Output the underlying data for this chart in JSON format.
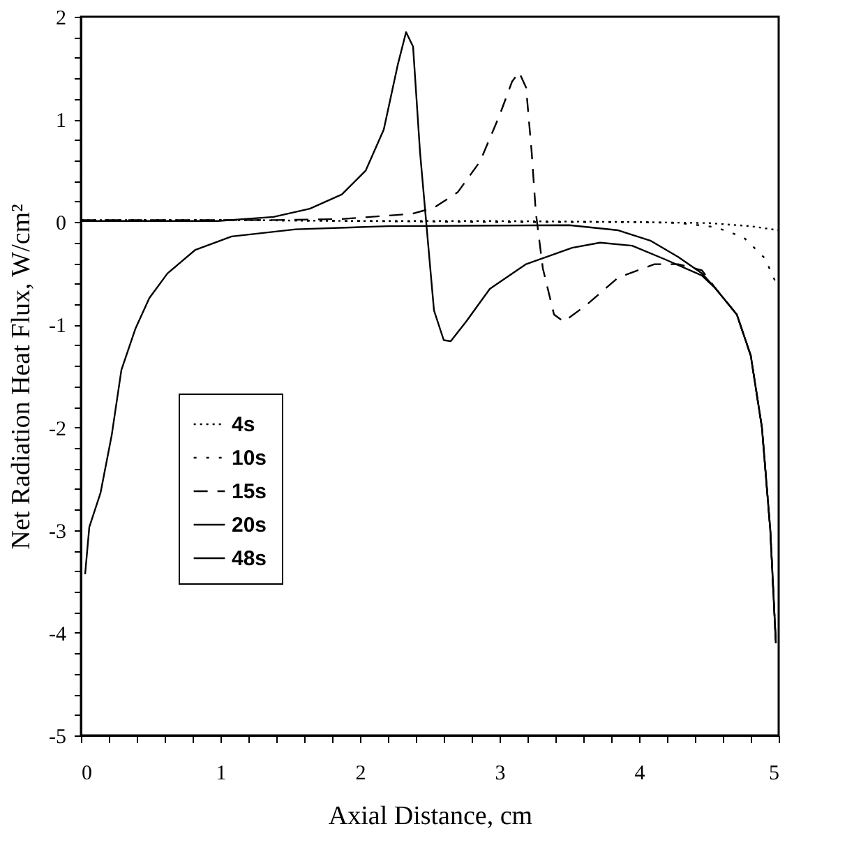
{
  "chart_data": {
    "type": "line",
    "xlabel": "Axial Distance, cm",
    "ylabel": "Net Radiation Heat Flux, W/cm²",
    "xlim": [
      0,
      5
    ],
    "ylim": [
      -5,
      2
    ],
    "xticks": [
      0,
      {
        "value": 0.2,
        "label": null
      },
      {
        "value": 0.4,
        "label": null
      },
      {
        "value": 0.6,
        "label": null
      },
      {
        "value": 0.8,
        "label": null
      },
      1,
      {
        "value": 1.2,
        "label": null
      },
      {
        "value": 1.4,
        "label": null
      },
      {
        "value": 1.6,
        "label": null
      },
      {
        "value": 1.8,
        "label": null
      },
      2,
      {
        "value": 2.2,
        "label": null
      },
      {
        "value": 2.4,
        "label": null
      },
      {
        "value": 2.6,
        "label": null
      },
      {
        "value": 2.8,
        "label": null
      },
      3,
      {
        "value": 3.2,
        "label": null
      },
      {
        "value": 3.4,
        "label": null
      },
      {
        "value": 3.6,
        "label": null
      },
      {
        "value": 3.8,
        "label": null
      },
      4,
      {
        "value": 4.2,
        "label": null
      },
      {
        "value": 4.4,
        "label": null
      },
      {
        "value": 4.6,
        "label": null
      },
      {
        "value": 4.8,
        "label": null
      },
      5
    ],
    "yticks": [
      -5,
      {
        "value": -4.8,
        "label": null
      },
      {
        "value": -4.6,
        "label": null
      },
      {
        "value": -4.4,
        "label": null
      },
      {
        "value": -4.2,
        "label": null
      },
      -4,
      {
        "value": -3.8,
        "label": null
      },
      {
        "value": -3.6,
        "label": null
      },
      {
        "value": -3.4,
        "label": null
      },
      {
        "value": -3.2,
        "label": null
      },
      -3,
      {
        "value": -2.8,
        "label": null
      },
      {
        "value": -2.6,
        "label": null
      },
      {
        "value": -2.4,
        "label": null
      },
      {
        "value": -2.2,
        "label": null
      },
      -2,
      {
        "value": -1.8,
        "label": null
      },
      {
        "value": -1.6,
        "label": null
      },
      {
        "value": -1.4,
        "label": null
      },
      {
        "value": -1.2,
        "label": null
      },
      -1,
      {
        "value": -0.8,
        "label": null
      },
      {
        "value": -0.6,
        "label": null
      },
      {
        "value": -0.4,
        "label": null
      },
      {
        "value": -0.2,
        "label": null
      },
      0,
      {
        "value": 0.2,
        "label": null
      },
      {
        "value": 0.4,
        "label": null
      },
      {
        "value": 0.6,
        "label": null
      },
      {
        "value": 0.8,
        "label": null
      },
      1,
      {
        "value": 1.2,
        "label": null
      },
      {
        "value": 1.4,
        "label": null
      },
      {
        "value": 1.6,
        "label": null
      },
      {
        "value": 1.8,
        "label": null
      },
      2
    ],
    "grid": false,
    "legend": "left",
    "marker": "none",
    "series": [
      {
        "name": "4s",
        "color": "#000000",
        "line_style": "dotted",
        "x": [
          0,
          1,
          2,
          3,
          4,
          4.5,
          4.8,
          5
        ],
        "values": [
          0.02,
          0.02,
          0.01,
          0.01,
          0.0,
          -0.01,
          -0.04,
          -0.08
        ]
      },
      {
        "name": "10s",
        "color": "#000000",
        "line_style": "dotted",
        "x": [
          0,
          1,
          2,
          3,
          4,
          4.3,
          4.55,
          4.75,
          4.9,
          5
        ],
        "values": [
          0.02,
          0.02,
          0.01,
          0.0,
          0.0,
          -0.01,
          -0.05,
          -0.15,
          -0.35,
          -0.65
        ]
      },
      {
        "name": "15s",
        "color": "#000000",
        "line_style": "dashed",
        "x": [
          0,
          1,
          1.4,
          1.87,
          2.37,
          2.53,
          2.7,
          2.86,
          3.0,
          3.09,
          3.14,
          3.19,
          3.23,
          3.26,
          3.31,
          3.39,
          3.46,
          3.62,
          3.85,
          4.11,
          4.28,
          4.45,
          4.55,
          4.7,
          4.8,
          4.88,
          4.94,
          4.98
        ],
        "values": [
          0.02,
          0.02,
          0.02,
          0.03,
          0.08,
          0.14,
          0.29,
          0.59,
          1.04,
          1.37,
          1.46,
          1.31,
          0.68,
          0.09,
          -0.45,
          -0.9,
          -0.97,
          -0.81,
          -0.54,
          -0.41,
          -0.41,
          -0.47,
          -0.65,
          -0.9,
          -1.3,
          -2.0,
          -3.0,
          -4.1
        ]
      },
      {
        "name": "20s",
        "color": "#000000",
        "line_style": "solid",
        "x": [
          0,
          0.98,
          1.38,
          1.64,
          1.87,
          2.04,
          2.17,
          2.27,
          2.33,
          2.38,
          2.43,
          2.48,
          2.53,
          2.6,
          2.65,
          2.76,
          2.93,
          3.19,
          3.52,
          3.72,
          3.95,
          4.18,
          4.45,
          4.55,
          4.7,
          4.8,
          4.88,
          4.94,
          4.98
        ],
        "values": [
          0.01,
          0.01,
          0.05,
          0.13,
          0.27,
          0.5,
          0.9,
          1.53,
          1.85,
          1.71,
          0.68,
          -0.09,
          -0.86,
          -1.15,
          -1.16,
          -0.97,
          -0.65,
          -0.41,
          -0.25,
          -0.2,
          -0.23,
          -0.36,
          -0.52,
          -0.65,
          -0.9,
          -1.3,
          -2.0,
          -3.0,
          -4.1
        ]
      },
      {
        "name": "48s",
        "color": "#000000",
        "line_style": "solid",
        "x": [
          0.03,
          0.06,
          0.14,
          0.22,
          0.29,
          0.39,
          0.49,
          0.62,
          0.82,
          1.08,
          1.54,
          2.2,
          3.5,
          3.85,
          4.08,
          4.28,
          4.45,
          4.55,
          4.7,
          4.8,
          4.88,
          4.94,
          4.98
        ],
        "values": [
          -3.43,
          -2.97,
          -2.64,
          -2.08,
          -1.44,
          -1.04,
          -0.74,
          -0.5,
          -0.27,
          -0.14,
          -0.07,
          -0.04,
          -0.03,
          -0.08,
          -0.18,
          -0.34,
          -0.5,
          -0.65,
          -0.9,
          -1.3,
          -2.0,
          -3.0,
          -4.1
        ]
      }
    ]
  }
}
